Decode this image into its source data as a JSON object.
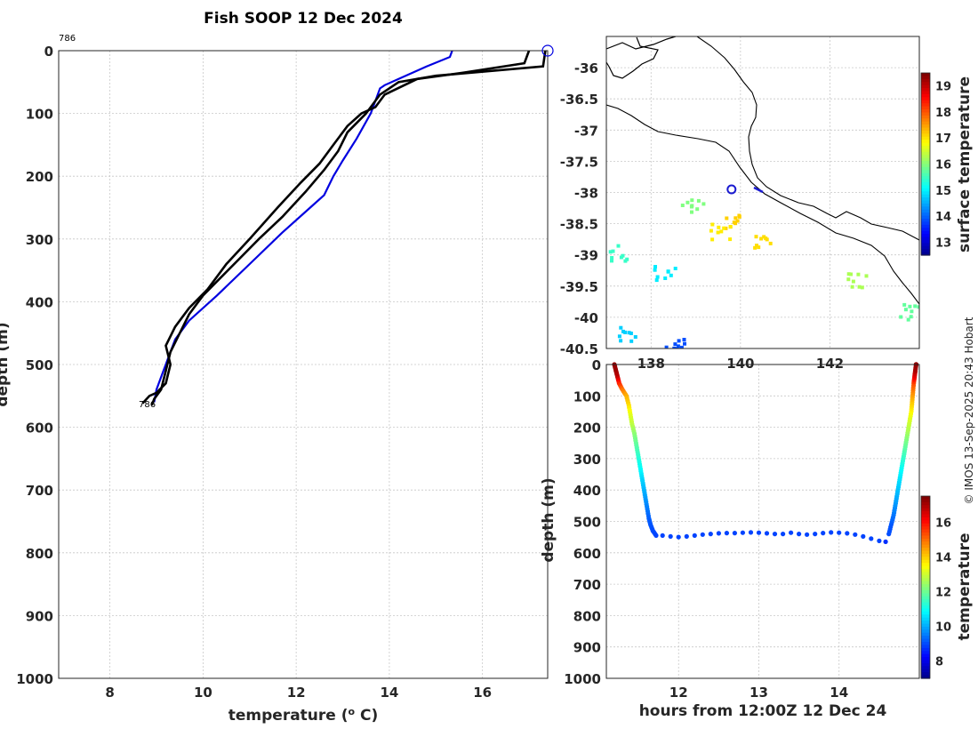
{
  "chart_data": [
    {
      "type": "line",
      "title": "Fish SOOP 12 Dec 2024",
      "xlabel": "temperature (o C)",
      "ylabel": "depth (m)",
      "xlim": [
        6.9,
        17.4
      ],
      "ylim": [
        0,
        1000
      ],
      "yreversed": true,
      "xticks": [
        8,
        10,
        12,
        14,
        16
      ],
      "yticks": [
        0,
        100,
        200,
        300,
        400,
        500,
        600,
        700,
        800,
        900,
        1000
      ],
      "grid": true,
      "annotations": {
        "top_id": "786",
        "bottom_id": "786",
        "top_marker": [
          17.4,
          0
        ]
      },
      "series": [
        {
          "name": "profile-blue",
          "color": "#0000e0",
          "points": [
            [
              15.35,
              0
            ],
            [
              15.3,
              10
            ],
            [
              14.8,
              25
            ],
            [
              14.2,
              45
            ],
            [
              13.9,
              55
            ],
            [
              13.8,
              60
            ],
            [
              13.6,
              100
            ],
            [
              13.3,
              140
            ],
            [
              13.0,
              175
            ],
            [
              12.8,
              200
            ],
            [
              12.6,
              230
            ],
            [
              12.3,
              250
            ],
            [
              11.7,
              290
            ],
            [
              11.0,
              340
            ],
            [
              10.3,
              390
            ],
            [
              9.7,
              430
            ],
            [
              9.4,
              460
            ],
            [
              9.25,
              490
            ],
            [
              9.1,
              520
            ],
            [
              9.0,
              540
            ],
            [
              8.95,
              560
            ]
          ]
        },
        {
          "name": "profile-black-1",
          "color": "#000000",
          "points": [
            [
              17.0,
              0
            ],
            [
              16.9,
              20
            ],
            [
              15.6,
              35
            ],
            [
              14.6,
              45
            ],
            [
              13.9,
              70
            ],
            [
              13.7,
              90
            ],
            [
              13.4,
              100
            ],
            [
              13.1,
              120
            ],
            [
              12.8,
              150
            ],
            [
              12.5,
              180
            ],
            [
              12.1,
              210
            ],
            [
              11.6,
              250
            ],
            [
              11.0,
              300
            ],
            [
              10.5,
              340
            ],
            [
              10.1,
              380
            ],
            [
              9.7,
              410
            ],
            [
              9.4,
              440
            ],
            [
              9.2,
              470
            ],
            [
              9.3,
              500
            ],
            [
              9.2,
              530
            ],
            [
              9.0,
              545
            ],
            [
              8.85,
              550
            ],
            [
              8.7,
              562
            ]
          ]
        },
        {
          "name": "profile-black-2",
          "color": "#000000",
          "points": [
            [
              17.35,
              0
            ],
            [
              17.3,
              25
            ],
            [
              15.0,
              40
            ],
            [
              14.2,
              50
            ],
            [
              13.8,
              70
            ],
            [
              13.5,
              100
            ],
            [
              13.1,
              130
            ],
            [
              12.9,
              160
            ],
            [
              12.6,
              190
            ],
            [
              12.2,
              225
            ],
            [
              11.7,
              265
            ],
            [
              11.2,
              300
            ],
            [
              10.8,
              330
            ],
            [
              10.4,
              360
            ],
            [
              10.0,
              390
            ],
            [
              9.7,
              420
            ],
            [
              9.5,
              450
            ],
            [
              9.3,
              480
            ],
            [
              9.2,
              510
            ],
            [
              9.1,
              540
            ],
            [
              8.95,
              555
            ],
            [
              8.9,
              565
            ]
          ]
        }
      ]
    },
    {
      "type": "heatmap",
      "title": "",
      "colorbar_label": "surface temperature",
      "colorbar_range": [
        12.5,
        19.5
      ],
      "colorbar_ticks": [
        13,
        14,
        15,
        16,
        17,
        18,
        19
      ],
      "xlim": [
        137.0,
        144.0
      ],
      "ylim": [
        -40.5,
        -35.5
      ],
      "xticks": [
        138,
        140,
        142
      ],
      "yticks": [
        -36,
        -36.5,
        -37,
        -37.5,
        -38,
        -38.5,
        -39,
        -39.5,
        -40,
        -40.5
      ],
      "ytick_labels": [
        "-36",
        "-36.5",
        "-37",
        "-37.5",
        "-38",
        "-38.5",
        "-39",
        "-39.5",
        "-40",
        "-40.5"
      ],
      "station": [
        139.8,
        -37.95
      ],
      "sst_patches": [
        {
          "lon": 139.85,
          "lat": -38.45,
          "sst": 17.2
        },
        {
          "lon": 139.5,
          "lat": -38.6,
          "sst": 17.0
        },
        {
          "lon": 140.5,
          "lat": -38.75,
          "sst": 17.1
        },
        {
          "lon": 138.9,
          "lat": -38.2,
          "sst": 16.0
        },
        {
          "lon": 137.2,
          "lat": -38.95,
          "sst": 15.5
        },
        {
          "lon": 138.3,
          "lat": -39.25,
          "sst": 15.0
        },
        {
          "lon": 142.6,
          "lat": -39.4,
          "sst": 16.3
        },
        {
          "lon": 143.8,
          "lat": -39.9,
          "sst": 15.8
        },
        {
          "lon": 137.5,
          "lat": -40.25,
          "sst": 14.8
        },
        {
          "lon": 138.5,
          "lat": -40.35,
          "sst": 13.9
        }
      ]
    },
    {
      "type": "scatter",
      "xlabel": "hours from 12:00Z 12 Dec 24",
      "ylabel": "depth (m)",
      "colorbar_label": "temperature",
      "colorbar_range": [
        7,
        17.5
      ],
      "colorbar_ticks": [
        8,
        10,
        12,
        14,
        16
      ],
      "xlim": [
        11.1,
        15.0
      ],
      "ylim": [
        0,
        1000
      ],
      "yreversed": true,
      "xticks": [
        12,
        13,
        14
      ],
      "yticks": [
        0,
        100,
        200,
        300,
        400,
        500,
        600,
        700,
        800,
        900,
        1000
      ],
      "points": [
        [
          11.2,
          0,
          17.3
        ],
        [
          11.22,
          20,
          17.2
        ],
        [
          11.24,
          40,
          16.9
        ],
        [
          11.26,
          60,
          15.9
        ],
        [
          11.3,
          80,
          15.0
        ],
        [
          11.35,
          100,
          14.4
        ],
        [
          11.38,
          130,
          13.9
        ],
        [
          11.4,
          160,
          13.3
        ],
        [
          11.42,
          190,
          12.9
        ],
        [
          11.45,
          220,
          12.4
        ],
        [
          11.47,
          250,
          12.0
        ],
        [
          11.49,
          280,
          11.6
        ],
        [
          11.51,
          310,
          11.2
        ],
        [
          11.53,
          340,
          10.9
        ],
        [
          11.55,
          370,
          10.5
        ],
        [
          11.57,
          400,
          10.2
        ],
        [
          11.59,
          430,
          9.9
        ],
        [
          11.61,
          460,
          9.6
        ],
        [
          11.63,
          490,
          9.3
        ],
        [
          11.65,
          510,
          9.2
        ],
        [
          11.68,
          530,
          9.1
        ],
        [
          11.72,
          545,
          9.0
        ],
        [
          11.8,
          545,
          9.0
        ],
        [
          11.9,
          548,
          9.0
        ],
        [
          12.0,
          550,
          9.0
        ],
        [
          12.1,
          548,
          9.0
        ],
        [
          12.2,
          545,
          9.0
        ],
        [
          12.3,
          542,
          9.0
        ],
        [
          12.4,
          540,
          9.0
        ],
        [
          12.5,
          538,
          9.0
        ],
        [
          12.6,
          537,
          9.0
        ],
        [
          12.7,
          537,
          9.0
        ],
        [
          12.8,
          536,
          9.0
        ],
        [
          12.9,
          535,
          9.0
        ],
        [
          13.0,
          536,
          9.0
        ],
        [
          13.1,
          538,
          9.0
        ],
        [
          13.2,
          540,
          9.0
        ],
        [
          13.3,
          540,
          9.0
        ],
        [
          13.4,
          536,
          9.0
        ],
        [
          13.5,
          540,
          9.0
        ],
        [
          13.6,
          542,
          9.0
        ],
        [
          13.7,
          540,
          9.0
        ],
        [
          13.8,
          537,
          9.0
        ],
        [
          13.9,
          535,
          9.0
        ],
        [
          14.0,
          536,
          9.0
        ],
        [
          14.1,
          538,
          9.0
        ],
        [
          14.2,
          542,
          9.0
        ],
        [
          14.3,
          548,
          9.0
        ],
        [
          14.4,
          555,
          9.0
        ],
        [
          14.5,
          562,
          9.0
        ],
        [
          14.58,
          565,
          8.8
        ],
        [
          14.62,
          540,
          9.1
        ],
        [
          14.65,
          510,
          9.2
        ],
        [
          14.68,
          480,
          9.5
        ],
        [
          14.7,
          450,
          9.8
        ],
        [
          14.72,
          420,
          10.1
        ],
        [
          14.74,
          390,
          10.4
        ],
        [
          14.76,
          360,
          10.7
        ],
        [
          14.78,
          330,
          11.0
        ],
        [
          14.8,
          300,
          11.4
        ],
        [
          14.82,
          270,
          11.8
        ],
        [
          14.84,
          240,
          12.2
        ],
        [
          14.86,
          210,
          12.7
        ],
        [
          14.88,
          180,
          13.1
        ],
        [
          14.9,
          150,
          13.6
        ],
        [
          14.91,
          120,
          14.1
        ],
        [
          14.92,
          90,
          14.7
        ],
        [
          14.93,
          60,
          15.4
        ],
        [
          14.94,
          40,
          16.3
        ],
        [
          14.95,
          20,
          17.0
        ],
        [
          14.96,
          0,
          17.3
        ]
      ]
    }
  ],
  "copyright": "© IMOS 13-Sep-2025 20:43 Hobart"
}
